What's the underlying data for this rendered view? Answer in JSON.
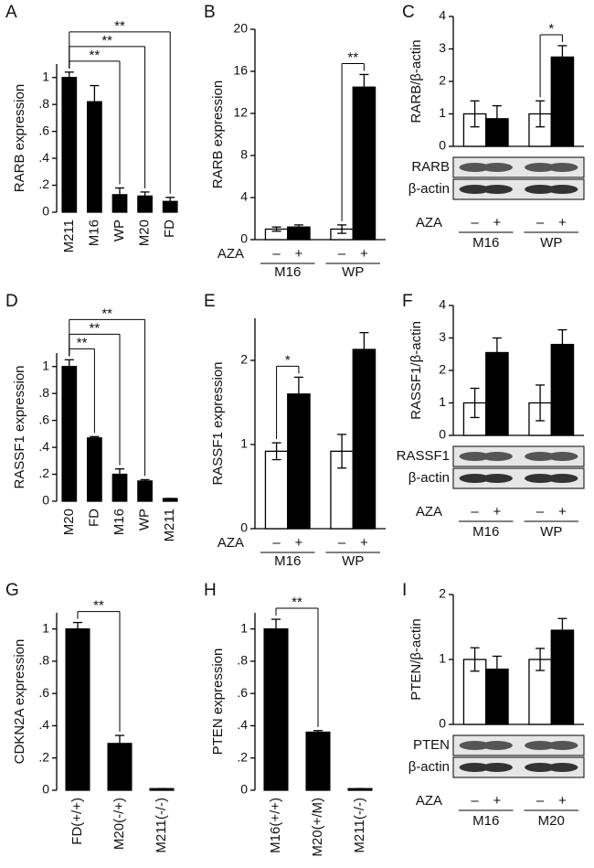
{
  "chart_data": [
    {
      "type": "bar",
      "panel": "A",
      "ylabel": "RARB expression",
      "color": "#000000",
      "categories": [
        "M211",
        "M16",
        "WP",
        "M20",
        "FD"
      ],
      "values": [
        1.0,
        0.82,
        0.13,
        0.12,
        0.08
      ],
      "errors": [
        0.04,
        0.12,
        0.05,
        0.03,
        0.03
      ],
      "ylim": [
        0,
        1.1
      ],
      "yticks": [
        0,
        {
          "value": 0.2,
          "label": ".2"
        },
        {
          "value": 0.4,
          "label": ".4"
        },
        {
          "value": 0.6,
          "label": ".6"
        },
        {
          "value": 0.8,
          "label": ".8"
        },
        1
      ],
      "significance": [
        {
          "bars": [
            0,
            2
          ],
          "label": "**"
        },
        {
          "bars": [
            0,
            3
          ],
          "label": "**"
        },
        {
          "bars": [
            0,
            4
          ],
          "label": "**"
        }
      ]
    },
    {
      "type": "bar",
      "panel": "B",
      "ylabel": "RARB expression",
      "colors": [
        "#ffffff",
        "#000000",
        "#ffffff",
        "#000000"
      ],
      "treatment": "AZA",
      "categories": [
        "–",
        "+",
        "–",
        "+"
      ],
      "groups": [
        "M16",
        "WP"
      ],
      "values": [
        1.0,
        1.2,
        1.0,
        14.5
      ],
      "errors": [
        0.2,
        0.2,
        0.4,
        1.2
      ],
      "ylim": [
        0,
        20
      ],
      "yticks": [
        0,
        4,
        8,
        12,
        16,
        20
      ],
      "significance": [
        {
          "bars": [
            2,
            3
          ],
          "label": "**"
        }
      ]
    },
    {
      "type": "bar",
      "panel": "C",
      "ylabel": "RARB/β-actin",
      "colors": [
        "#ffffff",
        "#000000",
        "#ffffff",
        "#000000"
      ],
      "treatment": "AZA",
      "categories": [
        "–",
        "+",
        "–",
        "+"
      ],
      "groups": [
        "M16",
        "WP"
      ],
      "values": [
        1.0,
        0.85,
        1.0,
        2.75
      ],
      "errors": [
        0.4,
        0.4,
        0.4,
        0.35
      ],
      "ylim": [
        0,
        4
      ],
      "yticks": [
        0,
        1,
        2,
        3,
        4
      ],
      "blot_labels": [
        "RARB",
        "β-actin"
      ],
      "significance": [
        {
          "bars": [
            2,
            3
          ],
          "label": "*"
        }
      ]
    },
    {
      "type": "bar",
      "panel": "D",
      "ylabel": "RASSF1 expression",
      "color": "#000000",
      "categories": [
        "M20",
        "FD",
        "M16",
        "WP",
        "M211"
      ],
      "values": [
        1.0,
        0.47,
        0.2,
        0.15,
        0.02
      ],
      "errors": [
        0.05,
        0.01,
        0.04,
        0.01,
        0
      ],
      "ylim": [
        0,
        1.1
      ],
      "yticks": [
        0,
        {
          "value": 0.2,
          "label": ".2"
        },
        {
          "value": 0.4,
          "label": ".4"
        },
        {
          "value": 0.6,
          "label": ".6"
        },
        {
          "value": 0.8,
          "label": ".8"
        },
        1
      ],
      "significance": [
        {
          "bars": [
            0,
            1
          ],
          "label": "**"
        },
        {
          "bars": [
            0,
            2
          ],
          "label": "**"
        },
        {
          "bars": [
            0,
            3
          ],
          "label": "**"
        }
      ]
    },
    {
      "type": "bar",
      "panel": "E",
      "ylabel": "RASSF1 expression",
      "colors": [
        "#ffffff",
        "#000000",
        "#ffffff",
        "#000000"
      ],
      "treatment": "AZA",
      "categories": [
        "–",
        "+",
        "–",
        "+"
      ],
      "groups": [
        "M16",
        "WP"
      ],
      "values": [
        0.92,
        1.6,
        0.92,
        2.13
      ],
      "errors": [
        0.1,
        0.2,
        0.2,
        0.2
      ],
      "ylim": [
        0,
        2.5
      ],
      "yticks": [
        0,
        1,
        2
      ],
      "significance": [
        {
          "bars": [
            0,
            1
          ],
          "label": "*"
        }
      ]
    },
    {
      "type": "bar",
      "panel": "F",
      "ylabel": "RASSF1/β-actin",
      "colors": [
        "#ffffff",
        "#000000",
        "#ffffff",
        "#000000"
      ],
      "treatment": "AZA",
      "categories": [
        "–",
        "+",
        "–",
        "+"
      ],
      "groups": [
        "M16",
        "WP"
      ],
      "values": [
        1.0,
        2.55,
        1.0,
        2.8
      ],
      "errors": [
        0.45,
        0.45,
        0.55,
        0.45
      ],
      "ylim": [
        0,
        4
      ],
      "yticks": [
        0,
        1,
        2,
        3,
        4
      ],
      "blot_labels": [
        "RASSF1",
        "β-actin"
      ]
    },
    {
      "type": "bar",
      "panel": "G",
      "ylabel": "CDKN2A expression",
      "color": "#000000",
      "categories": [
        "FD(+/+)",
        "M20(-/+)",
        "M211(-/-)"
      ],
      "values": [
        1.0,
        0.29,
        0.01
      ],
      "errors": [
        0.04,
        0.05,
        0
      ],
      "ylim": [
        0,
        1.1
      ],
      "yticks": [
        0,
        {
          "value": 0.2,
          "label": ".2"
        },
        {
          "value": 0.4,
          "label": ".4"
        },
        {
          "value": 0.6,
          "label": ".6"
        },
        {
          "value": 0.8,
          "label": ".8"
        },
        1
      ],
      "significance": [
        {
          "bars": [
            0,
            1
          ],
          "label": "**"
        }
      ]
    },
    {
      "type": "bar",
      "panel": "H",
      "ylabel": "PTEN expression",
      "color": "#000000",
      "categories": [
        "M16(+/+)",
        "M20(+/M)",
        "M211(-/-)"
      ],
      "values": [
        1.0,
        0.36,
        0.01
      ],
      "errors": [
        0.06,
        0.01,
        0
      ],
      "ylim": [
        0,
        1.1
      ],
      "yticks": [
        0,
        {
          "value": 0.2,
          "label": ".2"
        },
        {
          "value": 0.4,
          "label": ".4"
        },
        {
          "value": 0.6,
          "label": ".6"
        },
        {
          "value": 0.8,
          "label": ".8"
        },
        1
      ],
      "significance": [
        {
          "bars": [
            0,
            1
          ],
          "label": "**"
        }
      ]
    },
    {
      "type": "bar",
      "panel": "I",
      "ylabel": "PTEN/β-actin",
      "colors": [
        "#ffffff",
        "#000000",
        "#ffffff",
        "#000000"
      ],
      "treatment": "AZA",
      "categories": [
        "–",
        "+",
        "–",
        "+"
      ],
      "groups": [
        "M16",
        "M20"
      ],
      "values": [
        1.0,
        0.85,
        1.0,
        1.45
      ],
      "errors": [
        0.18,
        0.2,
        0.17,
        0.18
      ],
      "ylim": [
        0,
        2
      ],
      "yticks": [
        0,
        1,
        2
      ],
      "blot_labels": [
        "PTEN",
        "β-actin"
      ]
    }
  ]
}
